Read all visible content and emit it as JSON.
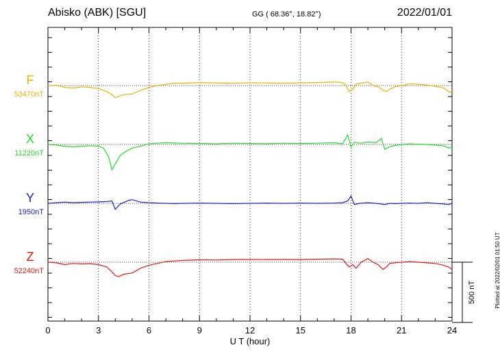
{
  "header": {
    "station": "Abisko (ABK)  [SGU]",
    "coordinates": "GG ( 68.36°,  18.82°)",
    "date": "2022/01/01"
  },
  "footer": {
    "plotted_note": "Plotted at 2022/02/01 01:50 UT"
  },
  "scale_bar": {
    "label": "500 nT",
    "value_nT": 500
  },
  "chart_data": {
    "type": "line",
    "title": "Abisko (ABK)  [SGU]",
    "xlabel": "U T (hour)",
    "xlim": [
      0,
      24
    ],
    "xticks": [
      0,
      3,
      6,
      9,
      12,
      15,
      18,
      21,
      24
    ],
    "xtick_labels": [
      "0",
      "3",
      "6",
      "9",
      "12",
      "15",
      "18",
      "21",
      "24"
    ],
    "grid": true,
    "units": "nT",
    "series": [
      {
        "name": "F",
        "baseline_label": "53470nT",
        "baseline_nT": 53470,
        "color": "#f0b000",
        "x": [
          0,
          0.5,
          1,
          1.5,
          2,
          2.5,
          3,
          3.5,
          3.8,
          4,
          4.2,
          4.5,
          5,
          5.5,
          6,
          6.5,
          7,
          7.5,
          8,
          9,
          10,
          11,
          12,
          13,
          14,
          15,
          16,
          17,
          17.5,
          17.7,
          17.9,
          18.1,
          18.3,
          18.6,
          19,
          19.3,
          19.6,
          19.9,
          20.1,
          20.3,
          20.6,
          21,
          21.5,
          22,
          22.5,
          23,
          23.5,
          23.8,
          24
        ],
        "values": [
          53470,
          53472,
          53455,
          53450,
          53460,
          53455,
          53445,
          53420,
          53395,
          53370,
          53380,
          53395,
          53400,
          53430,
          53455,
          53470,
          53480,
          53490,
          53490,
          53495,
          53492,
          53490,
          53493,
          53492,
          53490,
          53493,
          53495,
          53500,
          53495,
          53470,
          53420,
          53440,
          53480,
          53490,
          53500,
          53470,
          53460,
          53430,
          53420,
          53440,
          53460,
          53470,
          53485,
          53480,
          53475,
          53465,
          53450,
          53420,
          53410
        ]
      },
      {
        "name": "X",
        "baseline_label": "11220nT",
        "baseline_nT": 11220,
        "color": "#22dd22",
        "x": [
          0,
          0.5,
          1,
          1.5,
          2,
          2.5,
          3,
          3.3,
          3.6,
          3.8,
          4,
          4.3,
          4.6,
          5,
          5.5,
          6,
          6.5,
          7,
          7.5,
          8,
          9,
          10,
          11,
          12,
          13,
          14,
          15,
          16,
          17,
          17.5,
          17.8,
          18,
          18.2,
          18.5,
          19,
          19.5,
          19.8,
          20,
          20.2,
          20.5,
          21,
          21.5,
          22,
          22.5,
          23,
          23.5,
          23.8,
          24
        ],
        "values": [
          11220,
          11215,
          11205,
          11200,
          11205,
          11210,
          11205,
          11190,
          11120,
          11010,
          11060,
          11130,
          11160,
          11190,
          11205,
          11225,
          11230,
          11235,
          11232,
          11230,
          11228,
          11225,
          11230,
          11228,
          11226,
          11230,
          11228,
          11230,
          11235,
          11225,
          11300,
          11200,
          11240,
          11230,
          11240,
          11235,
          11270,
          11180,
          11195,
          11210,
          11220,
          11225,
          11222,
          11220,
          11215,
          11210,
          11190,
          11200
        ]
      },
      {
        "name": "Y",
        "baseline_label": "1950nT",
        "baseline_nT": 1950,
        "color": "#1a1ad0",
        "x": [
          0,
          0.5,
          1,
          1.5,
          2,
          2.5,
          3,
          3.5,
          3.8,
          4,
          4.3,
          4.8,
          5,
          5.5,
          6,
          6.5,
          7,
          7.5,
          8,
          9,
          10,
          11,
          12,
          13,
          14,
          15,
          16,
          17,
          17.5,
          17.8,
          18,
          18.2,
          18.5,
          19,
          19.5,
          20,
          20.3,
          20.6,
          21,
          21.5,
          22,
          22.5,
          23,
          23.5,
          23.8,
          24
        ],
        "values": [
          1950,
          1955,
          1960,
          1955,
          1958,
          1960,
          1962,
          1965,
          1970,
          1900,
          1945,
          1975,
          1980,
          1960,
          1955,
          1952,
          1950,
          1948,
          1950,
          1952,
          1950,
          1948,
          1950,
          1952,
          1950,
          1952,
          1950,
          1952,
          1955,
          1970,
          2010,
          1940,
          1950,
          1955,
          1950,
          1940,
          1950,
          1948,
          1950,
          1952,
          1950,
          1955,
          1950,
          1945,
          1940,
          1950
        ]
      },
      {
        "name": "Z",
        "baseline_label": "52240nT",
        "baseline_nT": 52240,
        "color": "#ee1111",
        "x": [
          0,
          0.5,
          1,
          1.5,
          2,
          2.5,
          3,
          3.5,
          3.8,
          4,
          4.2,
          4.5,
          5,
          5.5,
          6,
          6.5,
          7,
          7.5,
          8,
          9,
          10,
          11,
          12,
          13,
          14,
          15,
          16,
          17,
          17.5,
          17.7,
          17.9,
          18.1,
          18.3,
          18.6,
          19,
          19.3,
          19.6,
          19.9,
          20.1,
          20.3,
          20.6,
          21,
          21.5,
          22,
          22.5,
          23,
          23.5,
          23.8,
          24
        ],
        "values": [
          52240,
          52235,
          52220,
          52230,
          52225,
          52228,
          52220,
          52200,
          52160,
          52130,
          52120,
          52140,
          52150,
          52190,
          52215,
          52230,
          52245,
          52250,
          52255,
          52260,
          52258,
          52262,
          52263,
          52262,
          52263,
          52262,
          52265,
          52268,
          52265,
          52230,
          52200,
          52220,
          52190,
          52240,
          52270,
          52240,
          52220,
          52180,
          52200,
          52230,
          52235,
          52240,
          52245,
          52240,
          52235,
          52230,
          52215,
          52200,
          52180
        ]
      }
    ]
  }
}
